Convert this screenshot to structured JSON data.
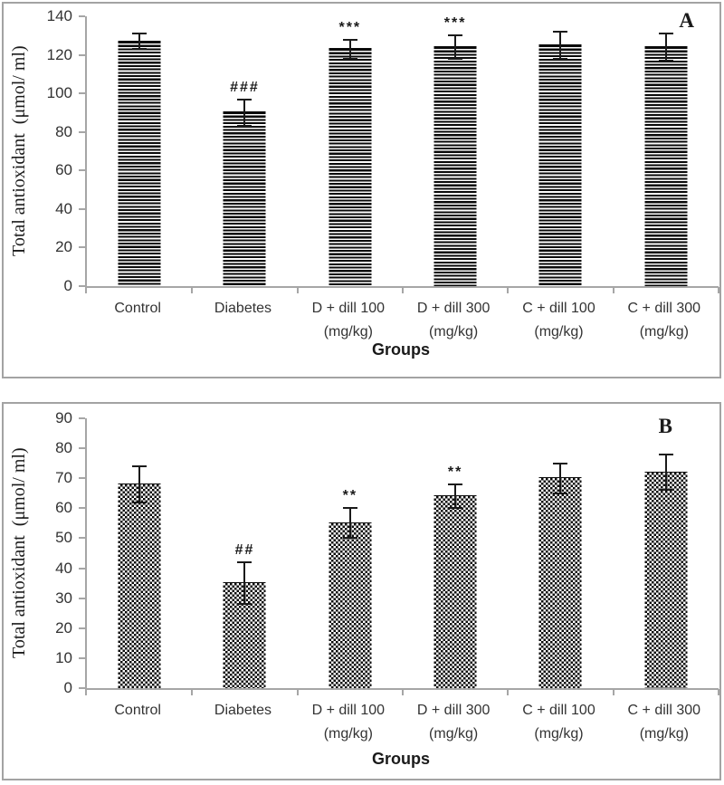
{
  "chart_data": [
    {
      "type": "bar",
      "panel_label": "A",
      "xlabel": "Groups",
      "ylabel": "Total antioxidant  (μmol/ ml)",
      "ylim": [
        0,
        140
      ],
      "yticks": [
        0,
        20,
        40,
        60,
        80,
        100,
        120,
        140
      ],
      "categories": [
        "Control",
        "Diabetes",
        "D + dill 100",
        "D + dill 300",
        "C + dill 100",
        "C + dill 300"
      ],
      "category_sublabels": [
        "",
        "",
        "(mg/kg)",
        "(mg/kg)",
        "(mg/kg)",
        "(mg/kg)"
      ],
      "values": [
        127,
        90,
        123,
        124,
        125,
        124
      ],
      "errors": [
        4,
        7,
        5,
        6,
        7,
        7
      ],
      "annotations": [
        "",
        "###",
        "***",
        "***",
        "",
        ""
      ],
      "bar_pattern": "horizontal-stripes",
      "bar_color": "#0a0a0a",
      "axis_color": "#a6a6a6",
      "grid": "off",
      "legend": "none"
    },
    {
      "type": "bar",
      "panel_label": "B",
      "xlabel": "Groups",
      "ylabel": "Total antioxidant  (μmol/ ml)",
      "ylim": [
        0,
        90
      ],
      "yticks": [
        0,
        10,
        20,
        30,
        40,
        50,
        60,
        70,
        80,
        90
      ],
      "categories": [
        "Control",
        "Diabetes",
        "D + dill 100",
        "D + dill 300",
        "C + dill 100",
        "C + dill 300"
      ],
      "category_sublabels": [
        "",
        "",
        "(mg/kg)",
        "(mg/kg)",
        "(mg/kg)",
        "(mg/kg)"
      ],
      "values": [
        68,
        35,
        55,
        64,
        70,
        72
      ],
      "errors": [
        6,
        7,
        5,
        4,
        5,
        6
      ],
      "annotations": [
        "",
        "##",
        "**",
        "**",
        "",
        ""
      ],
      "bar_pattern": "checkerboard",
      "bar_color": "#0a0a0a",
      "axis_color": "#a6a6a6",
      "grid": "off",
      "legend": "none"
    }
  ]
}
